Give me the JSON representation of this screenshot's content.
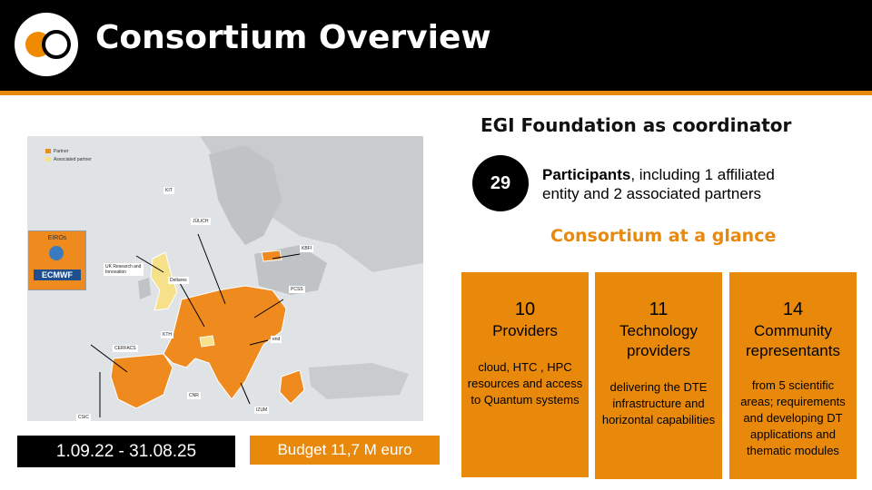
{
  "header": {
    "title": "Consortium Overview",
    "logo_icon": "egi-logo-icon"
  },
  "map": {
    "legend": [
      "Partner",
      "Associated partner"
    ],
    "legend_colors": {
      "partner": "#ef8a1e",
      "associated": "#f6e08a"
    },
    "eiros_label": "EIROs",
    "eiros_member": "ECMWF",
    "partner_labels": [
      "KIT",
      "JÜLICH",
      "KBFI",
      "PCSS",
      "CERFACS",
      "IZUM",
      "CSIC",
      "UK Research and Innovation",
      "Deltares",
      "end",
      "CNR",
      "KTH"
    ]
  },
  "period": "1.09.22 - 31.08.25",
  "budget": "Budget 11,7 M euro",
  "coordinator": "EGI Foundation as coordinator",
  "participants": {
    "count": "29",
    "bold": "Participants",
    "rest": ", including 1 affiliated entity and 2 associated partners"
  },
  "glance_title": "Consortium at a glance",
  "cards": [
    {
      "number": "10",
      "label": "Providers",
      "description": "cloud, HTC , HPC resources and access to Quantum systems"
    },
    {
      "number": "11",
      "label": "Technology providers",
      "description": "delivering the DTE infrastructure and horizontal capabilities"
    },
    {
      "number": "14",
      "label": "Community representants",
      "description": "from 5 scientific areas; requirements and developing DT applications and thematic modules"
    }
  ]
}
